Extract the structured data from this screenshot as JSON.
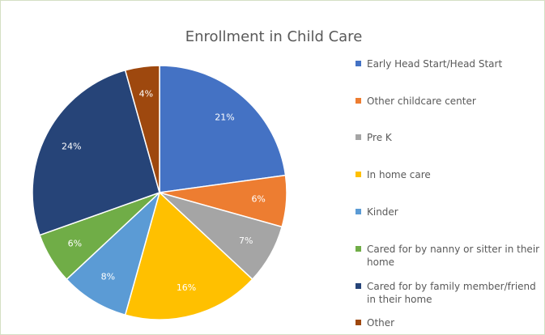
{
  "chart_data": {
    "type": "pie",
    "title": "Enrollment in Child Care",
    "categories": [
      "Early Head Start/Head Start",
      "Other childcare center",
      "Pre K",
      "In home care",
      "Kinder",
      "Cared for by nanny or sitter in their home",
      "Cared for by family member/friend in their home",
      "Other"
    ],
    "values": [
      21,
      6,
      7,
      16,
      8,
      6,
      24,
      4
    ],
    "value_labels": [
      "21%",
      "6%",
      "7%",
      "16%",
      "8%",
      "6%",
      "24%",
      "4%"
    ],
    "colors": [
      "#4472c4",
      "#ed7d31",
      "#a5a5a5",
      "#ffc000",
      "#5b9bd5",
      "#70ad47",
      "#264478",
      "#9e480e"
    ],
    "legend": "right"
  }
}
